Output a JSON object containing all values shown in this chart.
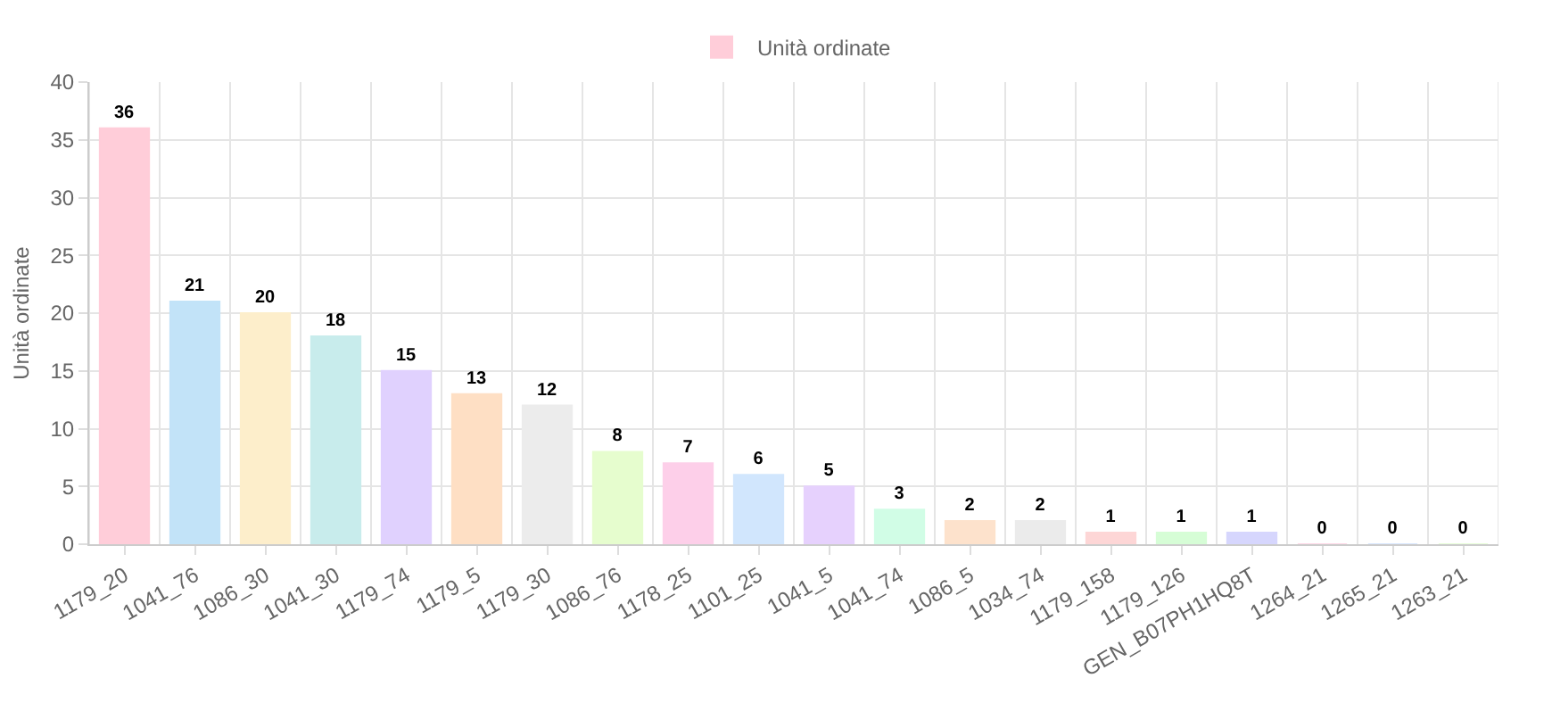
{
  "chart_data": {
    "type": "bar",
    "ylabel": "Unità ordinate",
    "categories": [
      "1179_20",
      "1041_76",
      "1086_30",
      "1041_30",
      "1179_74",
      "1179_5",
      "1179_30",
      "1086_76",
      "1178_25",
      "1101_25",
      "1041_5",
      "1041_74",
      "1086_5",
      "1034_74",
      "1179_158",
      "1179_126",
      "GEN_B07PH1HQ8T",
      "1264_21",
      "1265_21",
      "1263_21"
    ],
    "series": [
      {
        "name": "Unità ordinate",
        "colors": [
          "#ffcdd9",
          "#c2e3f8",
          "#fdeecb",
          "#c8ecec",
          "#e0d1fe",
          "#fedfc4",
          "#ececec",
          "#e6fdce",
          "#fdcfe9",
          "#d1e6fd",
          "#e6d1fd",
          "#d1fde6",
          "#fde2cc",
          "#ebebeb",
          "#fdd6d6",
          "#d6fdd6",
          "#d6d6fd",
          "#fdd6e6",
          "#d6e6fd",
          "#e6fdd6"
        ],
        "values": [
          36,
          21,
          20,
          18,
          15,
          13,
          12,
          8,
          7,
          6,
          5,
          3,
          2,
          2,
          1,
          1,
          1,
          0,
          0,
          0
        ]
      }
    ],
    "ylim": [
      0,
      40
    ],
    "yticks": [
      0,
      5,
      10,
      15,
      20,
      25,
      30,
      35,
      40
    ],
    "grid": true,
    "legend": "top",
    "data_labels": true
  }
}
